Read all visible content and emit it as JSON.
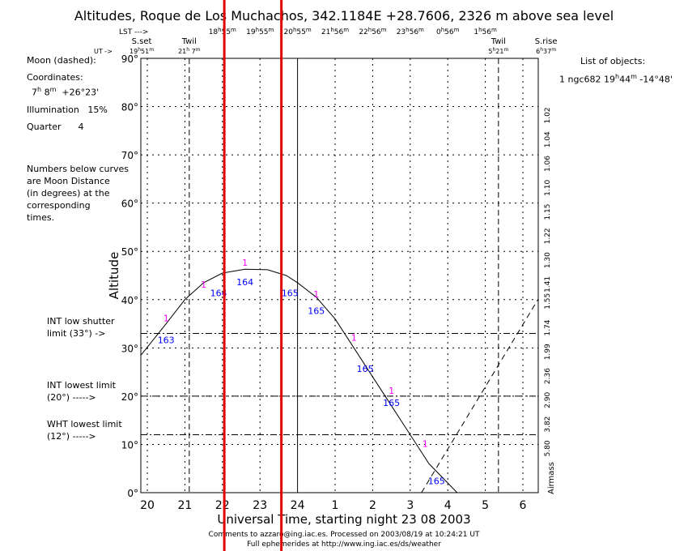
{
  "title": "Altitudes, Roque de Los Muchachos, 342.1184E +28.7606, 2326 m above sea level",
  "lst_label": "LST --->",
  "ut_label": "UT ->",
  "lst_ticks": [
    {
      "ut": 22,
      "h": "18",
      "m": "55"
    },
    {
      "ut": 23,
      "h": "19",
      "m": "55"
    },
    {
      "ut": 24,
      "h": "20",
      "m": "55"
    },
    {
      "ut": 25,
      "h": "21",
      "m": "56"
    },
    {
      "ut": 26,
      "h": "22",
      "m": "56"
    },
    {
      "ut": 27,
      "h": "23",
      "m": "56"
    },
    {
      "ut": 28,
      "h": "0",
      "m": "56"
    },
    {
      "ut": 29,
      "h": "1",
      "m": "56"
    }
  ],
  "events": [
    {
      "label": "S.set",
      "h": "19",
      "m": "51",
      "ut": 19.85
    },
    {
      "label": "Twil",
      "h": "21",
      "m": " 7",
      "ut": 21.117
    },
    {
      "label": "Twil",
      "h": "5",
      "m": "21",
      "ut": 29.35
    },
    {
      "label": "S.rise",
      "h": "6",
      "m": "37",
      "ut": 30.617
    }
  ],
  "moon": {
    "heading": "Moon (dashed):",
    "coords_label": "Coordinates:",
    "ra_h": "7",
    "ra_m": " 8",
    "dec": "+26°23'",
    "illumination_label": "Illumination",
    "illumination": "15%",
    "quarter_label": "Quarter",
    "quarter": "4"
  },
  "note": [
    "Numbers below curves",
    "are Moon Distance",
    "(in degrees) at the",
    "corresponding",
    "times."
  ],
  "limits": [
    {
      "lines": [
        "INT low shutter",
        "limit (33°) ->"
      ],
      "alt": 33
    },
    {
      "lines": [
        "INT lowest limit",
        "(20°) ----->"
      ],
      "alt": 20
    },
    {
      "lines": [
        "WHT lowest limit",
        "(12°) ----->"
      ],
      "alt": 12
    }
  ],
  "objects": {
    "heading": "List of objects:",
    "items": [
      {
        "num": "1",
        "name": "ngc682",
        "ra_h": "19",
        "ra_m": "44",
        "dec": "-14°48'"
      }
    ]
  },
  "footer": [
    "Comments to azzaro@ing.iac.es. Processed on 2003/08/19 at 10:24:21 UT",
    "Full ephemerides at http://www.ing.iac.es/ds/weather"
  ],
  "colors": {
    "moon_dist": "#0000ff",
    "object_marker": "#ff00ff",
    "overlay": "#e00000"
  },
  "chart_data": {
    "type": "line",
    "title": "Altitudes, Roque de Los Muchachos, 342.1184E +28.7606, 2326 m above sea level",
    "xlabel": "Universal Time, starting night 23 08 2003",
    "ylabel": "Altitude",
    "y2label": "Airmass",
    "xlim": [
      19.83,
      30.4
    ],
    "ylim": [
      0,
      90
    ],
    "xticks": [
      20,
      21,
      22,
      23,
      24,
      25,
      26,
      27,
      28,
      29,
      30
    ],
    "xtick_labels": [
      "20",
      "21",
      "22",
      "23",
      "24",
      "1",
      "2",
      "3",
      "4",
      "5",
      "6"
    ],
    "yticks": [
      0,
      10,
      20,
      30,
      40,
      50,
      60,
      70,
      80,
      90
    ],
    "ytick_labels": [
      "0°",
      "10°",
      "20°",
      "30°",
      "40°",
      "50°",
      "60°",
      "70°",
      "80°",
      "90°"
    ],
    "airmass_ticks": [
      {
        "alt": 78.5,
        "label": "1.02"
      },
      {
        "alt": 73.5,
        "label": "1.04"
      },
      {
        "alt": 68.5,
        "label": "1.06"
      },
      {
        "alt": 63.5,
        "label": "1.10"
      },
      {
        "alt": 58.5,
        "label": "1.15"
      },
      {
        "alt": 53.5,
        "label": "1.22"
      },
      {
        "alt": 48.5,
        "label": "1.30"
      },
      {
        "alt": 43.5,
        "label": "1.41"
      },
      {
        "alt": 40,
        "label": "1.55"
      },
      {
        "alt": 34.5,
        "label": "1.74"
      },
      {
        "alt": 29.5,
        "label": "1.99"
      },
      {
        "alt": 24.5,
        "label": "2.36"
      },
      {
        "alt": 19.5,
        "label": "2.90"
      },
      {
        "alt": 14.5,
        "label": "3.82"
      },
      {
        "alt": 9.5,
        "label": "5.80"
      }
    ],
    "grid": true,
    "series": [
      {
        "name": "ngc682",
        "style": "solid",
        "x": [
          19.83,
          20.5,
          21,
          21.5,
          22,
          22.6,
          23.2,
          23.7,
          24,
          24.5,
          25,
          25.5,
          26,
          26.5,
          27,
          27.5,
          28.25
        ],
        "y": [
          28.5,
          35,
          40,
          43.5,
          45.5,
          46.3,
          46.2,
          45,
          43.5,
          40.5,
          36,
          30,
          24,
          18,
          12,
          6,
          0
        ]
      },
      {
        "name": "Moon",
        "style": "dashed",
        "x": [
          27.3,
          30.4
        ],
        "y": [
          0,
          40
        ]
      }
    ],
    "object_markers": [
      {
        "x": 20.5,
        "y": 35.5,
        "label": "1"
      },
      {
        "x": 21.5,
        "y": 42.5,
        "label": "1"
      },
      {
        "x": 22.6,
        "y": 47,
        "label": "1"
      },
      {
        "x": 24.5,
        "y": 40.5,
        "label": "1"
      },
      {
        "x": 25.5,
        "y": 31.5,
        "label": "1"
      },
      {
        "x": 26.5,
        "y": 20.5,
        "label": "1"
      },
      {
        "x": 27.4,
        "y": 9.5,
        "label": "1"
      }
    ],
    "moon_distances": [
      {
        "x": 20.5,
        "y": 31,
        "label": "163"
      },
      {
        "x": 21.9,
        "y": 40.7,
        "label": "164"
      },
      {
        "x": 22.6,
        "y": 43,
        "label": "164"
      },
      {
        "x": 23.8,
        "y": 40.7,
        "label": "165"
      },
      {
        "x": 24.5,
        "y": 37,
        "label": "165"
      },
      {
        "x": 25.8,
        "y": 25,
        "label": "165"
      },
      {
        "x": 26.5,
        "y": 18,
        "label": "165"
      },
      {
        "x": 27.7,
        "y": 1.8,
        "label": "165"
      }
    ],
    "overlay_lines_ut": [
      22.05,
      23.57
    ]
  }
}
